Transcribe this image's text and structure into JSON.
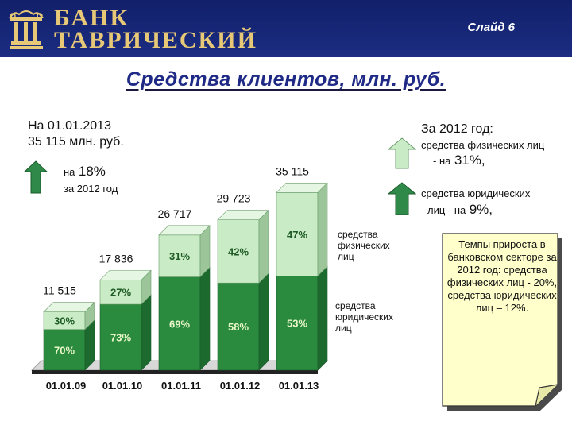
{
  "header": {
    "brand_line1": "БАНК",
    "brand_line2": "ТАВРИЧЕСКИЙ",
    "slide": "Слайд 6"
  },
  "title": "Средства клиентов, млн. руб.",
  "left_info": {
    "line1": "На 01.01.2013",
    "line2": "35 115 млн. руб.",
    "growth_prefix": "на",
    "growth_value": "18%",
    "growth_period": "за 2012 год"
  },
  "right_info": {
    "title": "За 2012 год:",
    "phys_line1": "средства физических лиц",
    "phys_line2": "- на",
    "phys_value": "31%,",
    "jur_line1": "средства юридических",
    "jur_line2": "лиц - на",
    "jur_value": "9%,"
  },
  "legend": {
    "phys": [
      "средства",
      "физических",
      "лиц"
    ],
    "jur": [
      "средства",
      "юридических",
      "лиц"
    ]
  },
  "callout": "Темпы прироста в банковском секторе за 2012 год: средства физических лиц - 20%, средства юридических лиц – 12%.",
  "colors": {
    "header_bg": "#1b2c82",
    "title": "#1e2a86",
    "jur_front": "#2a8a3e",
    "phys_front": "#c9ecc6",
    "arrow": "#2f8a4a"
  },
  "chart_data": {
    "type": "bar",
    "stacked": true,
    "categories": [
      "01.01.09",
      "01.01.10",
      "01.01.11",
      "01.01.12",
      "01.01.13"
    ],
    "totals": [
      11515,
      17836,
      26717,
      29723,
      35115
    ],
    "total_labels": [
      "11 515",
      "17 836",
      "26 717",
      "29 723",
      "35 115"
    ],
    "series": [
      {
        "name": "средства юридических лиц",
        "percent": [
          70,
          73,
          69,
          58,
          53
        ],
        "labels": [
          "70%",
          "73%",
          "69%",
          "58%",
          "53%"
        ]
      },
      {
        "name": "средства физических лиц",
        "percent": [
          30,
          27,
          31,
          42,
          47
        ],
        "labels": [
          "30%",
          "27%",
          "31%",
          "42%",
          "47%"
        ]
      }
    ]
  }
}
